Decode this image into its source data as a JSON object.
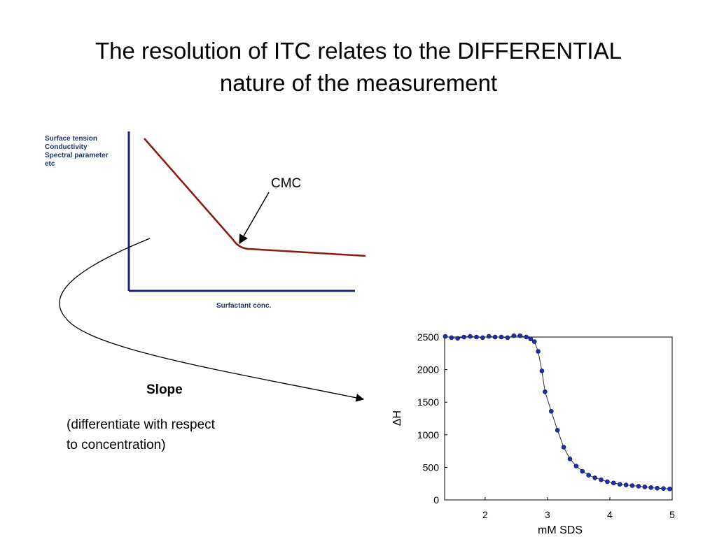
{
  "title": {
    "line1": "The resolution of ITC relates to the DIFFERENTIAL",
    "line2": "nature of the measurement"
  },
  "sketch": {
    "ylabel_lines": [
      "Surface tension",
      "Conductivity",
      "Spectral parameter",
      "etc"
    ],
    "xlabel": "Surfactant conc.",
    "annotation": "CMC",
    "line_color": "#8b1a10",
    "axis_color": "#1a237e",
    "label_color": "#1f3864"
  },
  "derivative": {
    "label": "Slope",
    "description_line1": "(differentiate with respect",
    "description_line2": "to concentration)"
  },
  "chart_data": {
    "type": "scatter",
    "title": "",
    "xlabel": "mM SDS",
    "ylabel": "ΔH",
    "xlim": [
      1.35,
      5.0
    ],
    "ylim": [
      0,
      2500
    ],
    "xticks": [
      "2",
      "3",
      "4",
      "5"
    ],
    "yticks": [
      "0",
      "500",
      "1000",
      "1500",
      "2000",
      "2500"
    ],
    "marker_color": "#1f2fa8",
    "line_color": "#333333",
    "x": [
      1.36,
      1.46,
      1.56,
      1.66,
      1.76,
      1.86,
      1.96,
      2.06,
      2.16,
      2.26,
      2.36,
      2.46,
      2.56,
      2.66,
      2.73,
      2.79,
      2.85,
      2.91,
      2.96,
      3.06,
      3.16,
      3.26,
      3.36,
      3.46,
      3.56,
      3.66,
      3.76,
      3.86,
      3.96,
      4.06,
      4.16,
      4.26,
      4.36,
      4.46,
      4.56,
      4.66,
      4.76,
      4.86,
      4.96
    ],
    "y": [
      2510,
      2490,
      2480,
      2500,
      2510,
      2500,
      2490,
      2510,
      2500,
      2500,
      2490,
      2520,
      2520,
      2500,
      2470,
      2430,
      2280,
      1980,
      1660,
      1360,
      1070,
      810,
      630,
      520,
      440,
      380,
      340,
      310,
      280,
      260,
      240,
      230,
      220,
      210,
      200,
      190,
      180,
      175,
      170
    ]
  }
}
